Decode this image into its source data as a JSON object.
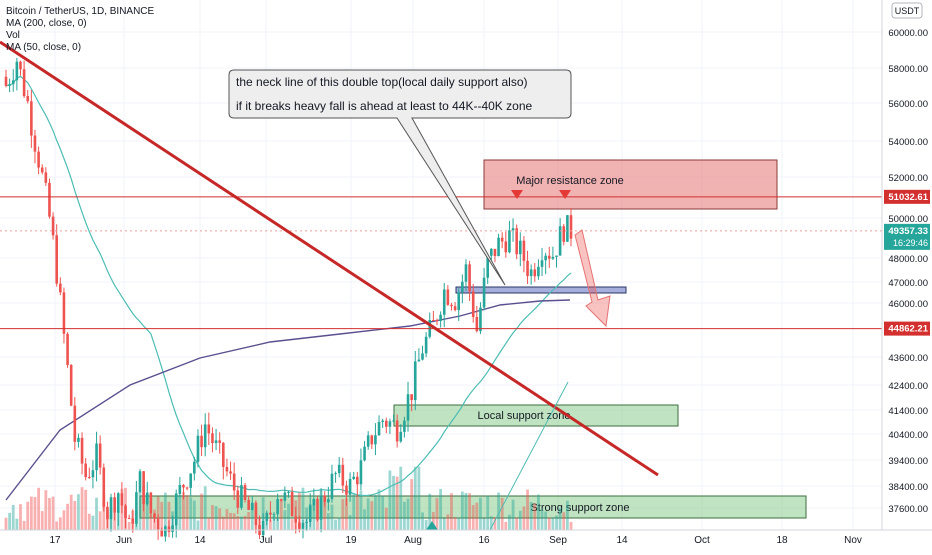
{
  "chart_data": {
    "type": "candlestick",
    "symbol": "Bitcoin / TetherUS, 1D, BINANCE",
    "indicators": [
      "MA (200, close, 0)",
      "Vol",
      "MA (50, close, 0)"
    ],
    "currency_badge": "USDT",
    "y_ticks": [
      60000,
      58000,
      56000,
      54000,
      52000,
      50000,
      48000,
      47000,
      46000,
      43600,
      42400,
      41400,
      40400,
      39400,
      38400,
      37600
    ],
    "y_tick_labels": [
      "60000.00",
      "58000.00",
      "56000.00",
      "54000.00",
      "52000.00",
      "50000.00",
      "48000.00",
      "47000.00",
      "46000.00",
      "43600.00",
      "42400.00",
      "41400.00",
      "40400.00",
      "39400.00",
      "38400.00",
      "37600.00"
    ],
    "x_ticks": [
      "17",
      "Jun",
      "14",
      "Jul",
      "19",
      "Aug",
      "16",
      "Sep",
      "14",
      "Oct",
      "18",
      "Nov"
    ],
    "price_badges": [
      {
        "label": "51032.61",
        "value": 51032.61,
        "color": "#d32f2f"
      },
      {
        "label": "49357.33",
        "sublabel": "16:29:46",
        "value": 49357.33,
        "color": "#26a69a"
      },
      {
        "label": "44862.21",
        "value": 44862.21,
        "color": "#d32f2f"
      }
    ],
    "horizontal_lines": [
      {
        "value": 51032.61,
        "color": "#d32f2f"
      },
      {
        "value": 44862.21,
        "color": "#d32f2f"
      }
    ],
    "zones": [
      {
        "label": "Major resistance zone",
        "color": "#e57373"
      },
      {
        "label": "Local support zone",
        "color": "#81c784"
      },
      {
        "label": "Strong support zone",
        "color": "#81c784"
      }
    ],
    "annotation": {
      "lines": [
        "the neck line of this double top(local daily support also)",
        "if it breaks heavy fall is ahead at least to 44K--40K zone"
      ]
    },
    "colors": {
      "up": "#26a69a",
      "down": "#ef5350",
      "ma200": "#5b4f8f",
      "ma50": "#4dbdb3",
      "trendline": "#c62828"
    }
  }
}
